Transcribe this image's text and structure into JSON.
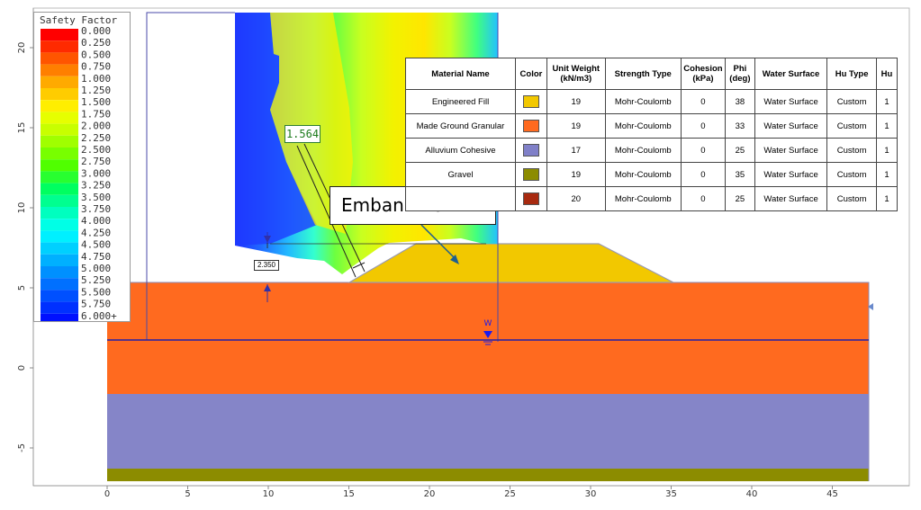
{
  "legend": {
    "title": "Safety Factor",
    "entries": [
      {
        "value": "0.000",
        "color": "#ff0000"
      },
      {
        "value": "0.250",
        "color": "#ff2a00"
      },
      {
        "value": "0.500",
        "color": "#ff5500"
      },
      {
        "value": "0.750",
        "color": "#ff7f00"
      },
      {
        "value": "1.000",
        "color": "#ffaa00"
      },
      {
        "value": "1.250",
        "color": "#ffcc00"
      },
      {
        "value": "1.500",
        "color": "#ffee00"
      },
      {
        "value": "1.750",
        "color": "#e6ff00"
      },
      {
        "value": "2.000",
        "color": "#c8ff00"
      },
      {
        "value": "2.250",
        "color": "#a0ff00"
      },
      {
        "value": "2.500",
        "color": "#78ff00"
      },
      {
        "value": "2.750",
        "color": "#50ff00"
      },
      {
        "value": "3.000",
        "color": "#28ff30"
      },
      {
        "value": "3.250",
        "color": "#00ff60"
      },
      {
        "value": "3.500",
        "color": "#00ff90"
      },
      {
        "value": "3.750",
        "color": "#00ffbf"
      },
      {
        "value": "4.000",
        "color": "#00ffe6"
      },
      {
        "value": "4.250",
        "color": "#00f0ff"
      },
      {
        "value": "4.500",
        "color": "#00d0ff"
      },
      {
        "value": "4.750",
        "color": "#00b0ff"
      },
      {
        "value": "5.000",
        "color": "#0090ff"
      },
      {
        "value": "5.250",
        "color": "#0070ff"
      },
      {
        "value": "5.500",
        "color": "#0050ff"
      },
      {
        "value": "5.750",
        "color": "#0030ff"
      },
      {
        "value": "6.000+",
        "color": "#0010ff"
      }
    ]
  },
  "critical_factor": "1.564",
  "dimension_label": "2.350",
  "callout": "Embankment",
  "water_marker": "W",
  "axes": {
    "x_ticks": [
      "0",
      "5",
      "10",
      "15",
      "20",
      "25",
      "30",
      "35",
      "40",
      "45"
    ],
    "y_ticks": [
      "20",
      "15",
      "10",
      "5",
      "0",
      "-5"
    ]
  },
  "table": {
    "headers": [
      "Material Name",
      "Color",
      "Unit Weight (kN/m3)",
      "Strength Type",
      "Cohesion (kPa)",
      "Phi (deg)",
      "Water Surface",
      "Hu Type",
      "Hu"
    ],
    "rows": [
      {
        "name": "Engineered Fill",
        "color": "#f2c800",
        "unit_weight": "19",
        "strength": "Mohr-Coulomb",
        "cohesion": "0",
        "phi": "38",
        "water": "Water Surface",
        "hu_type": "Custom",
        "hu": "1"
      },
      {
        "name": "Made Ground Granular",
        "color": "#ff6a1f",
        "unit_weight": "19",
        "strength": "Mohr-Coulomb",
        "cohesion": "0",
        "phi": "33",
        "water": "Water Surface",
        "hu_type": "Custom",
        "hu": "1"
      },
      {
        "name": "Alluvium Cohesive",
        "color": "#8080c8",
        "unit_weight": "17",
        "strength": "Mohr-Coulomb",
        "cohesion": "0",
        "phi": "25",
        "water": "Water Surface",
        "hu_type": "Custom",
        "hu": "1"
      },
      {
        "name": "Gravel",
        "color": "#8c8c00",
        "unit_weight": "19",
        "strength": "Mohr-Coulomb",
        "cohesion": "0",
        "phi": "35",
        "water": "Water Surface",
        "hu_type": "Custom",
        "hu": "1"
      },
      {
        "name": "",
        "color": "#a82a10",
        "unit_weight": "20",
        "strength": "Mohr-Coulomb",
        "cohesion": "0",
        "phi": "25",
        "water": "Water Surface",
        "hu_type": "Custom",
        "hu": "1"
      }
    ]
  }
}
